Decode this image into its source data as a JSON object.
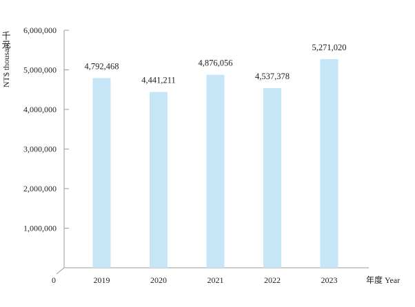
{
  "chart_data": {
    "type": "bar",
    "categories": [
      "2019",
      "2020",
      "2021",
      "2022",
      "2023"
    ],
    "values": [
      4792468,
      4441211,
      4876056,
      4537378,
      5271020
    ],
    "value_labels": [
      "4,792,468",
      "4,441,211",
      "4,876,056",
      "4,537,378",
      "5,271,020"
    ],
    "ylim": [
      0,
      6000000
    ],
    "yticks": [
      0,
      1000000,
      2000000,
      3000000,
      4000000,
      5000000,
      6000000
    ],
    "ytick_labels": [
      "0",
      "1,000,000",
      "2,000,000",
      "3,000,000",
      "4,000,000",
      "5,000,000",
      "6,000,000"
    ],
    "ylabel": "NT$ thousand",
    "ylabel_cjk": "千元",
    "xlabel": "年度 Year",
    "bar_color": "#c6e6f7",
    "axis_color": "#999999",
    "grid": false,
    "legend": "none"
  }
}
